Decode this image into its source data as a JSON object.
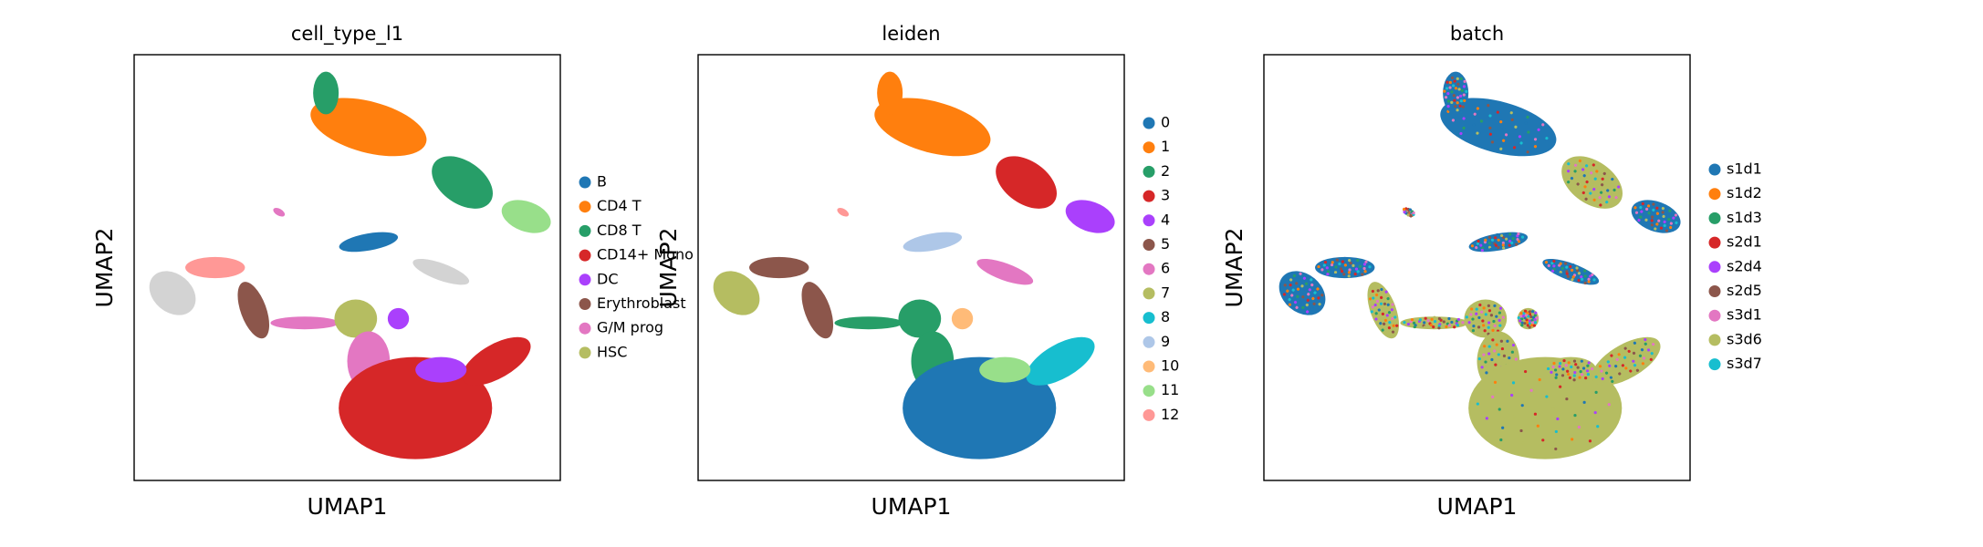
{
  "chart_data": [
    {
      "type": "scatter",
      "title": "cell_type_l1",
      "xlabel": "UMAP1",
      "ylabel": "UMAP2",
      "series": [
        {
          "name": "B",
          "color": "#1f77b4"
        },
        {
          "name": "CD4 T",
          "color": "#ff7f0e"
        },
        {
          "name": "CD8 T",
          "color": "#279e68"
        },
        {
          "name": "CD14+ Mono",
          "color": "#d62728"
        },
        {
          "name": "DC",
          "color": "#aa40fc"
        },
        {
          "name": "Erythroblast",
          "color": "#8c564b"
        },
        {
          "name": "G/M prog",
          "color": "#e377c2"
        },
        {
          "name": "HSC",
          "color": "#b5bd61"
        }
      ]
    },
    {
      "type": "scatter",
      "title": "leiden",
      "xlabel": "UMAP1",
      "ylabel": "UMAP2",
      "series": [
        {
          "name": "0",
          "color": "#1f77b4"
        },
        {
          "name": "1",
          "color": "#ff7f0e"
        },
        {
          "name": "2",
          "color": "#279e68"
        },
        {
          "name": "3",
          "color": "#d62728"
        },
        {
          "name": "4",
          "color": "#aa40fc"
        },
        {
          "name": "5",
          "color": "#8c564b"
        },
        {
          "name": "6",
          "color": "#e377c2"
        },
        {
          "name": "7",
          "color": "#b5bd61"
        },
        {
          "name": "8",
          "color": "#17becf"
        },
        {
          "name": "9",
          "color": "#aec7e8"
        },
        {
          "name": "10",
          "color": "#ffbb78"
        },
        {
          "name": "11",
          "color": "#98df8a"
        },
        {
          "name": "12",
          "color": "#ff9896"
        }
      ]
    },
    {
      "type": "scatter",
      "title": "batch",
      "xlabel": "UMAP1",
      "ylabel": "UMAP2",
      "series": [
        {
          "name": "s1d1",
          "color": "#1f77b4"
        },
        {
          "name": "s1d2",
          "color": "#ff7f0e"
        },
        {
          "name": "s1d3",
          "color": "#279e68"
        },
        {
          "name": "s2d1",
          "color": "#d62728"
        },
        {
          "name": "s2d4",
          "color": "#aa40fc"
        },
        {
          "name": "s2d5",
          "color": "#8c564b"
        },
        {
          "name": "s3d1",
          "color": "#e377c2"
        },
        {
          "name": "s3d6",
          "color": "#b5bd61"
        },
        {
          "name": "s3d7",
          "color": "#17becf"
        }
      ]
    }
  ]
}
